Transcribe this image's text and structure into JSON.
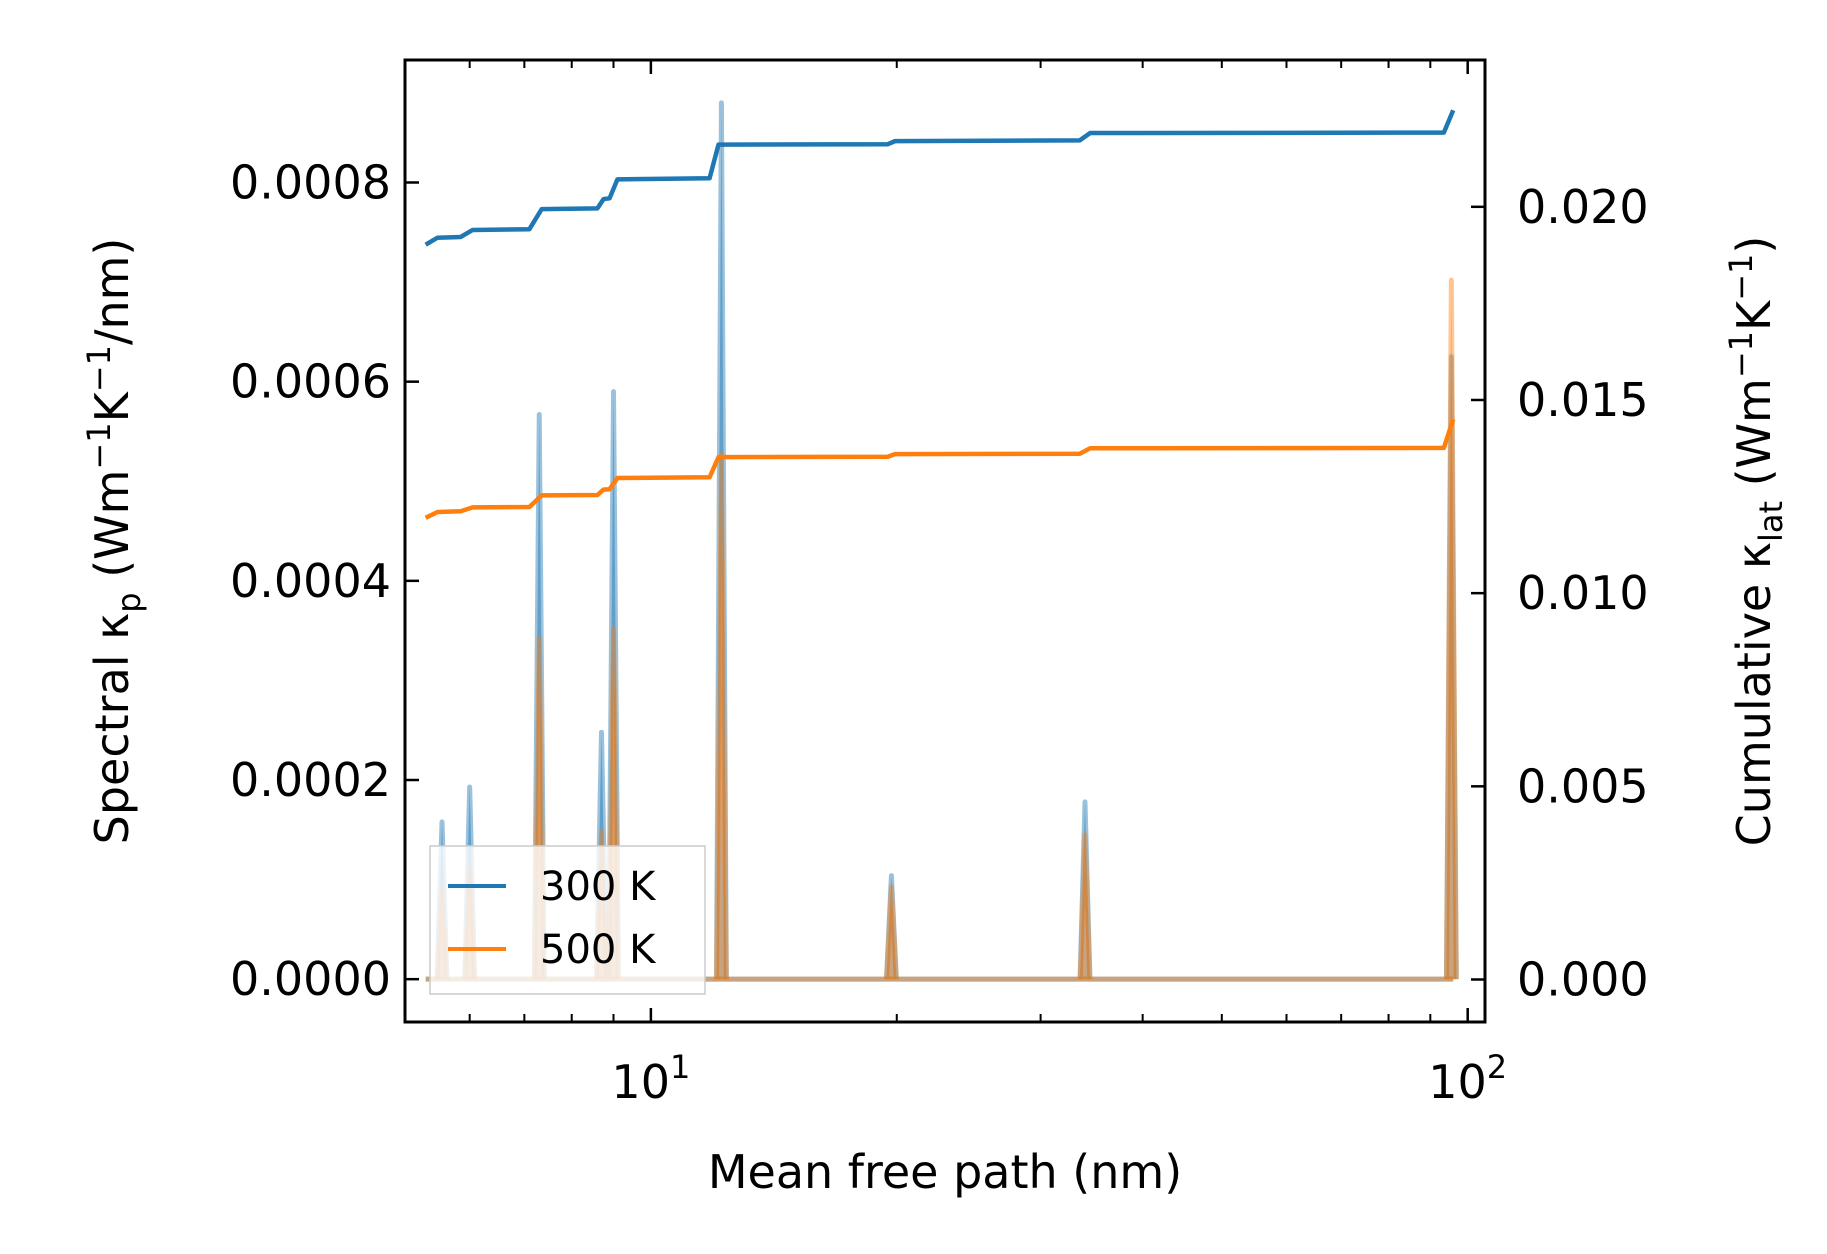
{
  "chart_data": {
    "type": "line",
    "xscale": "log",
    "xlim": [
      5,
      105
    ],
    "xlabel": "Mean free path (nm)",
    "ylabel_left": {
      "pre": "Spectral κ",
      "sub": "p",
      "mid": " (Wm",
      "sup1": "−1",
      "k": "K",
      "sup2": "−1",
      "post": "/nm)"
    },
    "ylabel_right": {
      "pre": "Cumulative κ",
      "sub": "lat",
      "mid": " (Wm",
      "sup1": "−1",
      "k": "K",
      "sup2": "−1",
      "post": ")"
    },
    "ylim_left": [
      -4.3e-05,
      0.000923
    ],
    "ylim_right": [
      -0.0011,
      0.0238
    ],
    "xticks": [
      {
        "value": 10,
        "base": "10",
        "exp": "1"
      },
      {
        "value": 100,
        "base": "10",
        "exp": "2"
      }
    ],
    "yticks_left": [
      {
        "value": 0.0,
        "label": "0.0000"
      },
      {
        "value": 0.0002,
        "label": "0.0002"
      },
      {
        "value": 0.0004,
        "label": "0.0004"
      },
      {
        "value": 0.0006,
        "label": "0.0006"
      },
      {
        "value": 0.0008,
        "label": "0.0008"
      }
    ],
    "yticks_right": [
      {
        "value": 0.0,
        "label": "0.000"
      },
      {
        "value": 0.005,
        "label": "0.005"
      },
      {
        "value": 0.01,
        "label": "0.010"
      },
      {
        "value": 0.015,
        "label": "0.015"
      },
      {
        "value": 0.02,
        "label": "0.020"
      }
    ],
    "peak_half_width_decades": 0.006,
    "legend": {
      "location": "lower-left",
      "entries": [
        "300 K",
        "500 K"
      ]
    },
    "series": [
      {
        "name": "300 K",
        "color": "#1f77b4",
        "spectral_peaks": [
          {
            "x": 5.55,
            "y": 0.000158
          },
          {
            "x": 6.0,
            "y": 0.000193
          },
          {
            "x": 7.3,
            "y": 0.000567
          },
          {
            "x": 8.7,
            "y": 0.000248
          },
          {
            "x": 9.0,
            "y": 0.00059
          },
          {
            "x": 12.2,
            "y": 0.00088
          },
          {
            "x": 19.7,
            "y": 0.000104
          },
          {
            "x": 34.0,
            "y": 0.000178
          },
          {
            "x": 95.5,
            "y": 0.000625
          }
        ],
        "cumulative": [
          {
            "x": 5.3,
            "y": 0.01902
          },
          {
            "x": 5.48,
            "y": 0.0192
          },
          {
            "x": 5.85,
            "y": 0.01922
          },
          {
            "x": 6.05,
            "y": 0.0194
          },
          {
            "x": 7.1,
            "y": 0.01942
          },
          {
            "x": 7.35,
            "y": 0.01994
          },
          {
            "x": 8.6,
            "y": 0.01996
          },
          {
            "x": 8.75,
            "y": 0.0202
          },
          {
            "x": 8.9,
            "y": 0.02022
          },
          {
            "x": 9.1,
            "y": 0.02071
          },
          {
            "x": 11.8,
            "y": 0.02074
          },
          {
            "x": 12.1,
            "y": 0.02161
          },
          {
            "x": 19.5,
            "y": 0.02162
          },
          {
            "x": 19.9,
            "y": 0.0217
          },
          {
            "x": 33.5,
            "y": 0.02172
          },
          {
            "x": 34.5,
            "y": 0.02191
          },
          {
            "x": 93.5,
            "y": 0.02192
          },
          {
            "x": 96.0,
            "y": 0.0225
          }
        ]
      },
      {
        "name": "500 K",
        "color": "#ff7f0e",
        "spectral_peaks": [
          {
            "x": 5.55,
            "y": 9.2e-05
          },
          {
            "x": 6.0,
            "y": 0.000112
          },
          {
            "x": 7.3,
            "y": 0.000342
          },
          {
            "x": 8.7,
            "y": 0.000148
          },
          {
            "x": 9.0,
            "y": 0.000352
          },
          {
            "x": 12.2,
            "y": 0.000528
          },
          {
            "x": 19.7,
            "y": 9.3e-05
          },
          {
            "x": 34.0,
            "y": 0.000145
          },
          {
            "x": 95.5,
            "y": 0.000702
          }
        ],
        "cumulative": [
          {
            "x": 5.3,
            "y": 0.01195
          },
          {
            "x": 5.48,
            "y": 0.0121
          },
          {
            "x": 5.85,
            "y": 0.01212
          },
          {
            "x": 6.05,
            "y": 0.01222
          },
          {
            "x": 7.1,
            "y": 0.01223
          },
          {
            "x": 7.35,
            "y": 0.01253
          },
          {
            "x": 8.6,
            "y": 0.01254
          },
          {
            "x": 8.75,
            "y": 0.01268
          },
          {
            "x": 8.9,
            "y": 0.01269
          },
          {
            "x": 9.1,
            "y": 0.01298
          },
          {
            "x": 11.8,
            "y": 0.013
          },
          {
            "x": 12.1,
            "y": 0.01352
          },
          {
            "x": 19.5,
            "y": 0.01353
          },
          {
            "x": 19.9,
            "y": 0.0136
          },
          {
            "x": 33.5,
            "y": 0.01361
          },
          {
            "x": 34.5,
            "y": 0.01375
          },
          {
            "x": 93.5,
            "y": 0.01376
          },
          {
            "x": 96.0,
            "y": 0.0145
          }
        ]
      }
    ]
  }
}
